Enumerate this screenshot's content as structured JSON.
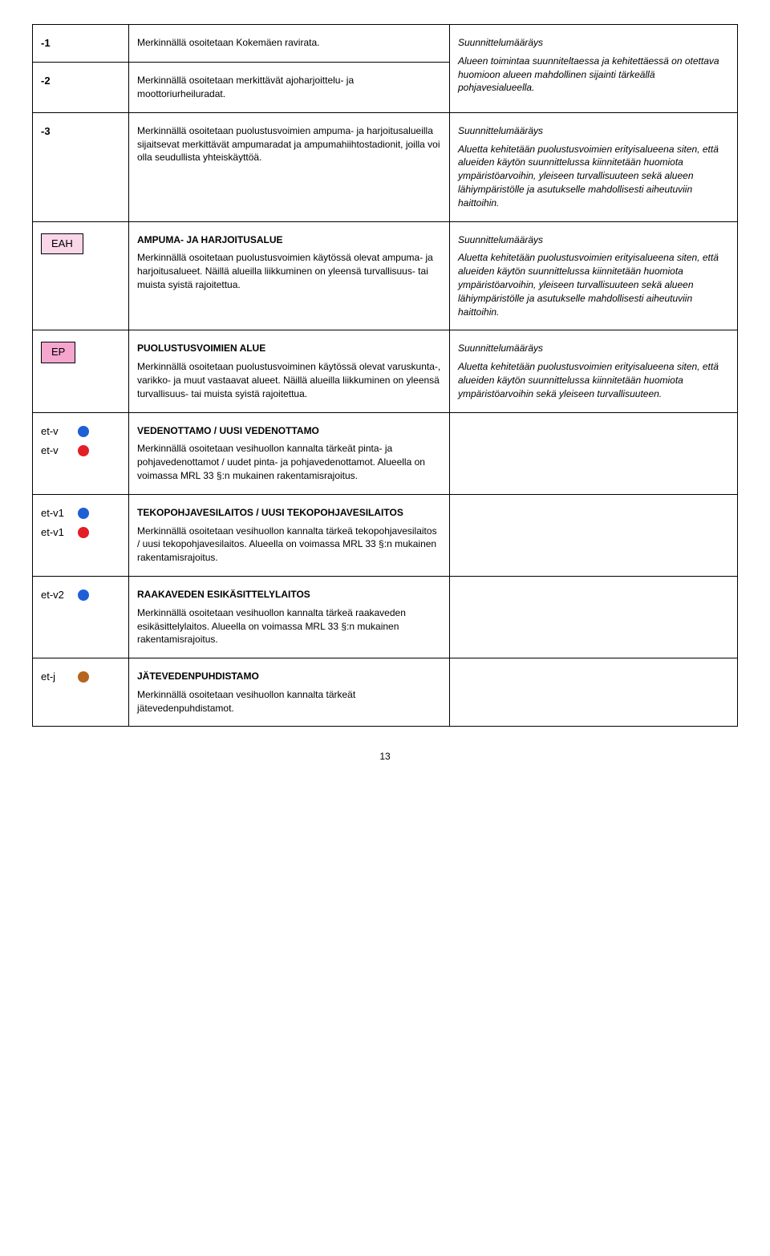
{
  "rows": [
    {
      "symbol": {
        "type": "text",
        "label": "-1"
      },
      "mid": [
        {
          "text": "Merkinnällä osoitetaan Kokemäen ravirata.",
          "bold": false,
          "italic": false
        }
      ],
      "right": [
        {
          "text": "Suunnittelumääräys",
          "bold": false,
          "italic": true
        },
        {
          "text": "Alueen toimintaa suunniteltaessa ja kehitettäessä on otettava huomioon alueen mahdollinen sijainti tärkeällä pohjavesialueella.",
          "bold": false,
          "italic": true
        }
      ],
      "rowspanRight": 2
    },
    {
      "symbol": {
        "type": "text",
        "label": "-2"
      },
      "mid": [
        {
          "text": "Merkinnällä osoitetaan merkittävät ajoharjoittelu- ja moottoriurheiluradat.",
          "bold": false,
          "italic": false
        }
      ]
    },
    {
      "symbol": {
        "type": "text",
        "label": "-3"
      },
      "mid": [
        {
          "text": "Merkinnällä osoitetaan puolustusvoimien ampuma- ja harjoitusalueilla sijaitsevat merkittävät ampumaradat ja ampumahiihtostadionit, joilla voi olla seudullista yhteiskäyttöä.",
          "bold": false,
          "italic": false
        }
      ],
      "right": [
        {
          "text": "Suunnittelumääräys",
          "bold": false,
          "italic": true
        },
        {
          "text": "Aluetta kehitetään puolustusvoimien erityisalueena siten, että alueiden käytön suunnittelussa kiinnitetään huomiota ympäristöarvoihin, yleiseen turvallisuuteen sekä alueen lähiympäristölle ja asutukselle mahdollisesti aiheutuviin haittoihin.",
          "bold": false,
          "italic": true
        }
      ]
    },
    {
      "symbol": {
        "type": "box",
        "label": "EAH",
        "bg": "#f9d6e8",
        "color": "#000"
      },
      "mid": [
        {
          "text": "AMPUMA- JA HARJOITUSALUE",
          "bold": true,
          "italic": false
        },
        {
          "text": "Merkinnällä osoitetaan puolustusvoimien käytössä olevat ampuma- ja harjoitusalueet. Näillä alueilla liikkuminen on yleensä turvallisuus- tai muista syistä rajoitettua.",
          "bold": false,
          "italic": false
        }
      ],
      "right": [
        {
          "text": "Suunnittelumääräys",
          "bold": false,
          "italic": true
        },
        {
          "text": "Aluetta kehitetään puolustusvoimien erityisalueena siten, että alueiden käytön suunnittelussa kiinnitetään huomiota ympäristöarvoihin, yleiseen turvallisuuteen sekä alueen lähiympäristölle ja asutukselle mahdollisesti aiheutuviin haittoihin.",
          "bold": false,
          "italic": true
        }
      ]
    },
    {
      "symbol": {
        "type": "box",
        "label": "EP",
        "bg": "#f4a6ce",
        "color": "#000"
      },
      "mid": [
        {
          "text": "PUOLUSTUSVOIMIEN ALUE",
          "bold": true,
          "italic": false
        },
        {
          "text": "Merkinnällä osoitetaan puolustusvoiminen käytössä olevat varuskunta-, varikko- ja muut vastaavat alueet. Näillä alueilla liikkuminen on yleensä turvallisuus- tai muista syistä rajoitettua.",
          "bold": false,
          "italic": false
        }
      ],
      "right": [
        {
          "text": "Suunnittelumääräys",
          "bold": false,
          "italic": true
        },
        {
          "text": "Aluetta kehitetään puolustusvoimien erityisalueena siten, että alueiden käytön suunnittelussa kiinnitetään huomiota ympäristöarvoihin sekä yleiseen turvallisuuteen.",
          "bold": false,
          "italic": true
        }
      ]
    },
    {
      "symbols": [
        {
          "type": "dot",
          "label": "et-v",
          "fill": "#1e5fd6"
        },
        {
          "type": "dot",
          "label": "et-v",
          "fill": "#e21f26"
        }
      ],
      "mid": [
        {
          "text": "VEDENOTTAMO / UUSI VEDENOTTAMO",
          "bold": true,
          "italic": false
        },
        {
          "text": "Merkinnällä osoitetaan vesihuollon kannalta tärkeät pinta- ja pohjavedenottamot / uudet pinta- ja pohjavedenottamot. Alueella on voimassa MRL 33 §:n mukainen rakentamisrajoitus.",
          "bold": false,
          "italic": false
        }
      ],
      "right": []
    },
    {
      "symbols": [
        {
          "type": "dot",
          "label": "et-v1",
          "fill": "#1e5fd6"
        },
        {
          "type": "dot",
          "label": "et-v1",
          "fill": "#e21f26"
        }
      ],
      "mid": [
        {
          "text": "TEKOPOHJAVESILAITOS / UUSI TEKOPOHJAVESILAITOS",
          "bold": true,
          "italic": false
        },
        {
          "text": "Merkinnällä osoitetaan vesihuollon kannalta tärkeä tekopohjavesilaitos /  uusi tekopohjavesilaitos. Alueella on voimassa MRL 33 §:n mukainen rakentamisrajoitus.",
          "bold": false,
          "italic": false
        }
      ],
      "right": []
    },
    {
      "symbols": [
        {
          "type": "dot",
          "label": "et-v2",
          "fill": "#1e5fd6"
        }
      ],
      "mid": [
        {
          "text": "RAAKAVEDEN ESIKÄSITTELYLAITOS",
          "bold": true,
          "italic": false
        },
        {
          "text": "Merkinnällä osoitetaan vesihuollon kannalta tärkeä raakaveden esikäsittelylaitos. Alueella on voimassa MRL 33 §:n mukainen rakentamisrajoitus.",
          "bold": false,
          "italic": false
        }
      ],
      "right": []
    },
    {
      "symbols": [
        {
          "type": "dot",
          "label": "et-j",
          "fill": "#b5651d"
        }
      ],
      "mid": [
        {
          "text": "JÄTEVEDENPUHDISTAMO",
          "bold": true,
          "italic": false
        },
        {
          "text": "Merkinnällä osoitetaan vesihuollon kannalta tärkeät jätevedenpuhdistamot.",
          "bold": false,
          "italic": false
        }
      ],
      "right": []
    }
  ],
  "pageNumber": "13"
}
